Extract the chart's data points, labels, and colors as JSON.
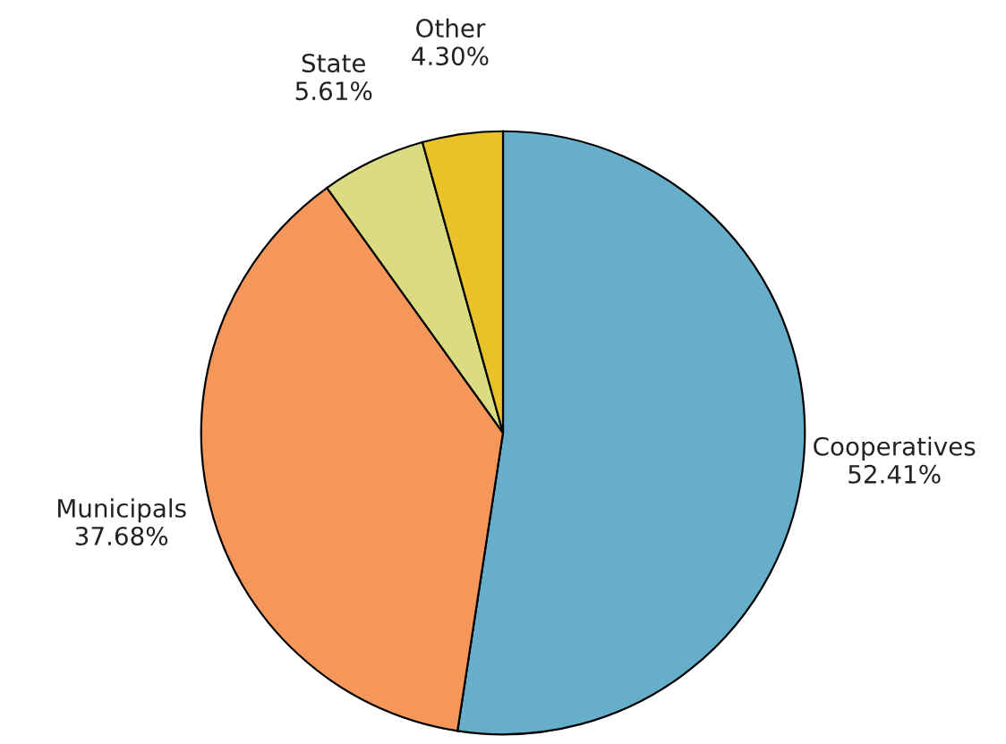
{
  "chart_data": {
    "type": "pie",
    "categories": [
      "Cooperatives",
      "Municipals",
      "State",
      "Other"
    ],
    "values": [
      52.41,
      37.68,
      5.61,
      4.3
    ],
    "value_labels": [
      "52.41%",
      "37.68%",
      "5.61%",
      "4.30%"
    ],
    "colors": [
      "#67aecb",
      "#f5975a",
      "#dbdc82",
      "#e9c22a"
    ]
  }
}
